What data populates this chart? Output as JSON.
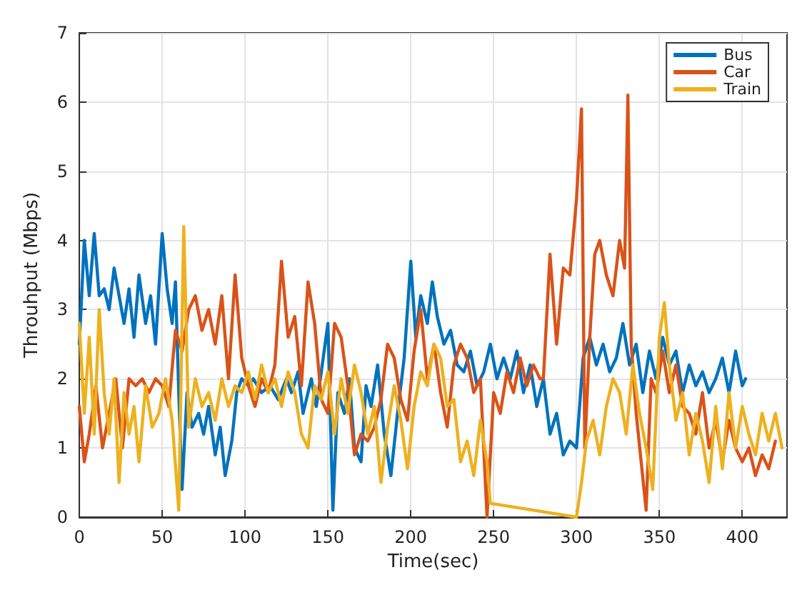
{
  "chart_data": {
    "type": "line",
    "xlabel": "Time(sec)",
    "ylabel": "Throuhput (Mbps)",
    "xlim": [
      0,
      427
    ],
    "xticks": [
      0,
      50,
      100,
      150,
      200,
      250,
      300,
      350,
      400
    ],
    "ylim": [
      0,
      7
    ],
    "yticks": [
      0,
      1,
      2,
      3,
      4,
      5,
      6,
      7
    ],
    "grid": true,
    "legend": "top right",
    "marker": "none",
    "line_style": "solid",
    "series": [
      {
        "name": "Bus",
        "color": "#0072bd",
        "x": [
          0,
          3,
          6,
          9,
          12,
          15,
          18,
          21,
          24,
          27,
          30,
          33,
          36,
          40,
          43,
          46,
          50,
          53,
          56,
          58,
          60,
          62,
          65,
          68,
          72,
          75,
          78,
          82,
          85,
          88,
          92,
          95,
          98,
          102,
          105,
          110,
          115,
          120,
          125,
          128,
          132,
          135,
          140,
          143,
          146,
          150,
          153,
          156,
          160,
          163,
          166,
          170,
          173,
          176,
          180,
          184,
          188,
          192,
          196,
          200,
          203,
          206,
          210,
          213,
          216,
          220,
          224,
          228,
          232,
          236,
          240,
          244,
          248,
          252,
          256,
          260,
          264,
          268,
          272,
          276,
          280,
          284,
          288,
          292,
          296,
          300,
          304,
          308,
          312,
          316,
          320,
          324,
          328,
          332,
          336,
          340,
          344,
          348,
          352,
          356,
          360,
          364,
          368,
          372,
          376,
          380,
          384,
          388,
          392,
          396,
          400,
          402
        ],
        "values": [
          2.5,
          4.0,
          3.2,
          4.1,
          3.2,
          3.3,
          3.0,
          3.6,
          3.2,
          2.8,
          3.3,
          2.6,
          3.5,
          2.8,
          3.2,
          2.5,
          4.1,
          3.3,
          2.8,
          3.4,
          1.8,
          0.4,
          1.8,
          1.3,
          1.5,
          1.2,
          1.6,
          0.9,
          1.3,
          0.6,
          1.1,
          1.8,
          2.0,
          1.9,
          2.0,
          1.8,
          1.9,
          1.7,
          2.0,
          1.8,
          2.1,
          1.5,
          2.0,
          1.6,
          2.1,
          2.8,
          0.1,
          1.8,
          1.5,
          2.0,
          1.0,
          0.8,
          1.9,
          1.6,
          2.2,
          1.2,
          0.6,
          1.5,
          2.3,
          3.7,
          2.6,
          3.2,
          2.8,
          3.4,
          2.9,
          2.5,
          2.7,
          2.2,
          2.1,
          2.4,
          1.9,
          2.1,
          2.5,
          2.0,
          2.3,
          2.0,
          2.4,
          1.8,
          2.2,
          1.6,
          2.0,
          1.2,
          1.5,
          0.9,
          1.1,
          1.0,
          2.3,
          2.6,
          2.2,
          2.5,
          2.1,
          2.3,
          2.8,
          2.2,
          2.5,
          1.8,
          2.4,
          2.0,
          2.6,
          2.2,
          2.4,
          1.8,
          2.2,
          1.9,
          2.1,
          1.8,
          2.0,
          2.3,
          1.8,
          2.4,
          1.9,
          2.0
        ]
      },
      {
        "name": "Car",
        "color": "#d95319",
        "x": [
          0,
          3,
          6,
          10,
          14,
          18,
          22,
          26,
          30,
          34,
          38,
          42,
          46,
          50,
          54,
          58,
          62,
          66,
          70,
          74,
          78,
          82,
          86,
          90,
          94,
          98,
          102,
          106,
          110,
          114,
          118,
          122,
          126,
          130,
          134,
          138,
          142,
          146,
          150,
          154,
          158,
          162,
          166,
          170,
          174,
          178,
          182,
          186,
          190,
          194,
          198,
          202,
          206,
          210,
          214,
          218,
          222,
          226,
          230,
          234,
          238,
          242,
          246,
          250,
          254,
          258,
          262,
          266,
          270,
          274,
          278,
          280,
          284,
          288,
          292,
          296,
          300,
          303,
          305,
          308,
          311,
          314,
          318,
          322,
          326,
          329,
          331,
          333,
          336,
          339,
          342,
          345,
          348,
          352,
          356,
          360,
          364,
          368,
          372,
          376,
          380,
          384,
          388,
          392,
          396,
          400,
          404,
          408,
          412,
          416,
          420
        ],
        "values": [
          1.6,
          0.8,
          1.2,
          1.9,
          1.0,
          1.5,
          2.0,
          1.0,
          2.0,
          1.9,
          2.0,
          1.8,
          2.0,
          1.9,
          1.6,
          2.7,
          2.4,
          3.0,
          3.2,
          2.7,
          3.0,
          2.5,
          3.2,
          2.0,
          3.5,
          2.3,
          1.9,
          1.6,
          2.0,
          1.8,
          2.2,
          3.7,
          2.6,
          2.9,
          1.9,
          3.4,
          2.8,
          1.7,
          1.5,
          2.8,
          2.6,
          1.9,
          0.9,
          1.2,
          1.1,
          1.3,
          1.7,
          2.5,
          2.3,
          1.7,
          1.4,
          2.4,
          3.0,
          2.0,
          2.5,
          1.8,
          1.3,
          2.2,
          2.5,
          2.3,
          1.8,
          2.0,
          0.0,
          1.8,
          1.5,
          2.1,
          1.8,
          2.3,
          1.9,
          2.2,
          2.0,
          2.0,
          3.8,
          2.5,
          3.6,
          3.5,
          4.6,
          5.9,
          1.0,
          2.6,
          3.8,
          4.0,
          3.5,
          3.2,
          4.0,
          3.6,
          6.1,
          2.5,
          1.5,
          0.8,
          0.1,
          2.0,
          1.8,
          2.4,
          1.8,
          2.2,
          1.6,
          1.5,
          1.2,
          1.8,
          1.0,
          1.4,
          0.8,
          1.4,
          1.0,
          0.8,
          1.0,
          0.6,
          0.9,
          0.7,
          1.1
        ]
      },
      {
        "name": "Train",
        "color": "#edb120",
        "x": [
          0,
          3,
          6,
          9,
          12,
          15,
          18,
          21,
          24,
          27,
          30,
          33,
          36,
          40,
          44,
          48,
          52,
          56,
          60,
          63,
          66,
          70,
          74,
          78,
          82,
          86,
          90,
          94,
          98,
          102,
          106,
          110,
          114,
          118,
          122,
          126,
          130,
          134,
          138,
          142,
          146,
          150,
          154,
          158,
          162,
          166,
          170,
          174,
          178,
          182,
          186,
          190,
          194,
          198,
          202,
          206,
          210,
          214,
          218,
          222,
          226,
          230,
          234,
          238,
          242,
          246,
          248,
          300,
          303,
          306,
          310,
          314,
          318,
          322,
          326,
          330,
          334,
          338,
          342,
          346,
          350,
          353,
          356,
          360,
          364,
          368,
          372,
          376,
          380,
          384,
          388,
          392,
          396,
          400,
          404,
          408,
          412,
          416,
          420,
          424
        ],
        "values": [
          2.8,
          1.5,
          2.6,
          1.2,
          3.0,
          1.8,
          1.2,
          2.0,
          0.5,
          1.8,
          1.2,
          1.6,
          0.8,
          1.9,
          1.3,
          1.5,
          2.0,
          1.4,
          0.1,
          4.2,
          1.3,
          2.0,
          1.6,
          1.8,
          1.4,
          2.0,
          1.6,
          1.9,
          1.8,
          2.1,
          1.7,
          2.2,
          1.8,
          2.0,
          1.6,
          2.1,
          1.8,
          1.2,
          1.0,
          1.9,
          1.7,
          2.1,
          1.2,
          2.0,
          1.5,
          2.2,
          1.8,
          1.2,
          1.6,
          0.5,
          1.3,
          1.9,
          1.4,
          0.7,
          1.6,
          2.1,
          1.9,
          2.5,
          2.3,
          1.6,
          1.7,
          0.8,
          1.1,
          0.6,
          1.4,
          0.8,
          0.2,
          0.0,
          0.5,
          1.1,
          1.4,
          0.9,
          1.6,
          2.0,
          1.8,
          1.2,
          2.2,
          1.5,
          1.0,
          0.4,
          2.6,
          3.1,
          2.2,
          1.4,
          1.8,
          0.9,
          1.5,
          1.1,
          0.5,
          1.6,
          0.7,
          1.8,
          1.0,
          1.6,
          1.2,
          0.9,
          1.5,
          1.1,
          1.5,
          1.0
        ]
      }
    ]
  }
}
